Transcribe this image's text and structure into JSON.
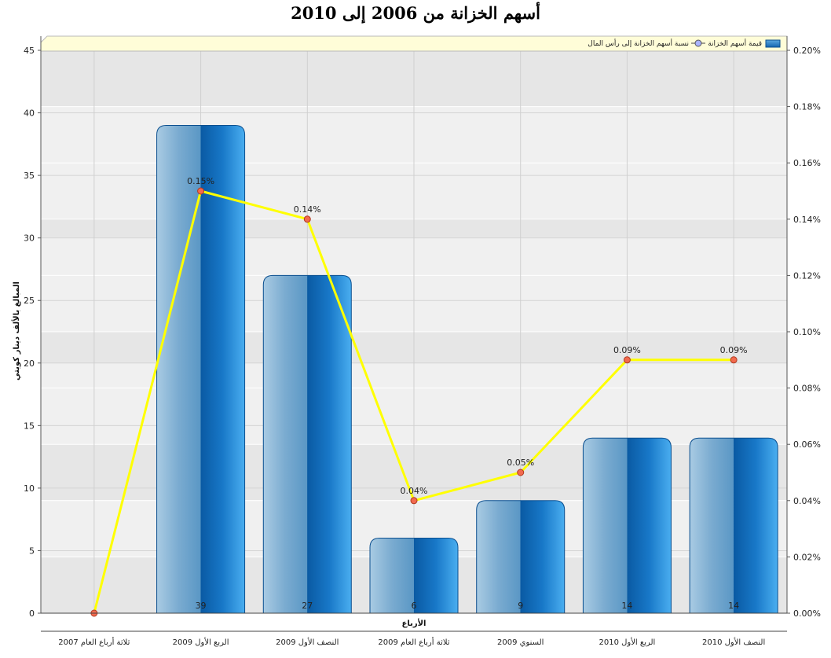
{
  "chart_data": {
    "type": "bar",
    "title": "أسهم الخزانة من 2006 إلى 2010",
    "xlabel": "الأرباع",
    "ylabel": "المبالغ بالألف دينار كويتي",
    "categories": [
      "ثلاثة أرباع العام 2007",
      "الربع الأول 2009",
      "النصف الأول 2009",
      "ثلاثة أرباع العام 2009",
      "السنوي 2009",
      "الربع الأول 2010",
      "النصف الأول 2010"
    ],
    "ylim": [
      0,
      45
    ],
    "yticks": [
      0,
      5,
      10,
      15,
      20,
      25,
      30,
      35,
      40,
      45
    ],
    "y2lim": [
      0,
      0.2
    ],
    "y2ticks": [
      "0.00%",
      "0.02%",
      "0.04%",
      "0.06%",
      "0.08%",
      "0.10%",
      "0.12%",
      "0.14%",
      "0.16%",
      "0.18%",
      "0.20%"
    ],
    "series": [
      {
        "name": "قيمة أسهم الخزانة",
        "kind": "bar",
        "axis": "left",
        "color": "#1a73c0",
        "values": [
          0,
          39,
          27,
          6,
          9,
          14,
          14
        ],
        "labels": [
          "",
          "39",
          "27",
          "6",
          "9",
          "14",
          "14"
        ]
      },
      {
        "name": "نسبة أسهم الخزانة إلى رأس المال",
        "kind": "line",
        "axis": "right",
        "color": "#ffff00",
        "values": [
          0.0,
          0.15,
          0.14,
          0.04,
          0.05,
          0.09,
          0.09
        ],
        "labels": [
          "",
          "0.15%",
          "0.14%",
          "0.04%",
          "0.05%",
          "0.09%",
          "0.09%"
        ]
      }
    ],
    "grid": true,
    "legend_position": "top"
  }
}
